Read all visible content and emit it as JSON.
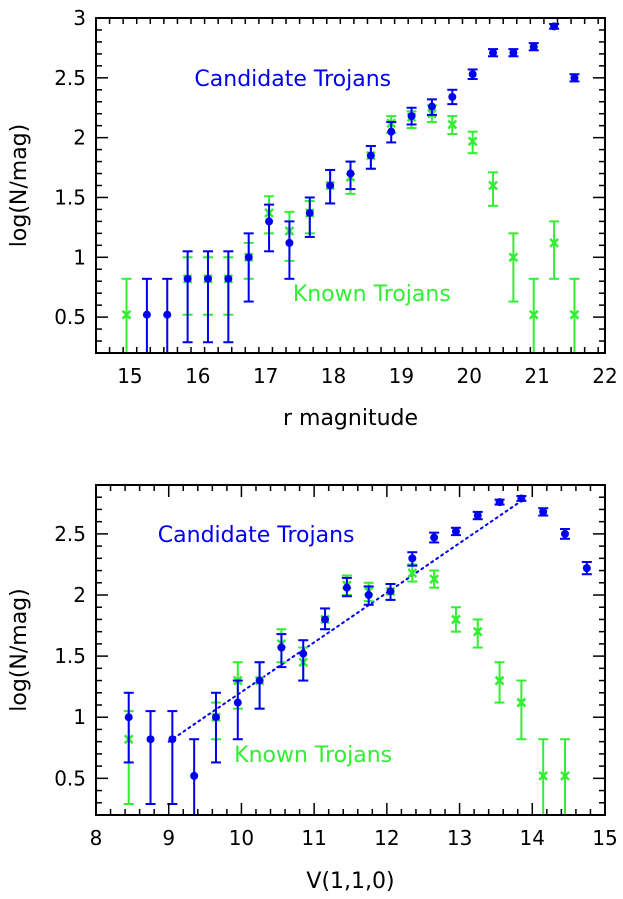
{
  "colors": {
    "candidate": "#0000ee",
    "known": "#33ee33",
    "axis": "#000000"
  },
  "chart_data": [
    {
      "type": "scatter",
      "title": "",
      "xlabel": "r magnitude",
      "ylabel": "log(N/mag)",
      "xlim": [
        14.5,
        22
      ],
      "ylim": [
        0.2,
        3
      ],
      "xticks": [
        15,
        16,
        17,
        18,
        19,
        20,
        21,
        22
      ],
      "yticks": [
        0.5,
        1,
        1.5,
        2,
        2.5,
        3
      ],
      "xtick_labels": [
        "15",
        "16",
        "17",
        "18",
        "19",
        "20",
        "21",
        "22"
      ],
      "ytick_labels": [
        "0.5",
        "1",
        "1.5",
        "2",
        "2.5",
        "3"
      ],
      "annotations": [
        {
          "text": "Candidate Trojans",
          "series": "candidate",
          "x": 15.95,
          "y": 2.5
        },
        {
          "text": "Known Trojans",
          "series": "known",
          "x": 17.4,
          "y": 0.7
        }
      ],
      "series": [
        {
          "id": "candidate",
          "marker": "circle",
          "points": [
            {
              "x": 15.25,
              "y": 0.52,
              "lo": 0.2,
              "hi": 0.82
            },
            {
              "x": 15.55,
              "y": 0.52,
              "lo": 0.2,
              "hi": 0.82
            },
            {
              "x": 15.85,
              "y": 0.82,
              "lo": 0.29,
              "hi": 1.05
            },
            {
              "x": 16.15,
              "y": 0.82,
              "lo": 0.29,
              "hi": 1.05
            },
            {
              "x": 16.45,
              "y": 0.82,
              "lo": 0.29,
              "hi": 1.05
            },
            {
              "x": 16.75,
              "y": 1.0,
              "lo": 0.63,
              "hi": 1.2
            },
            {
              "x": 17.05,
              "y": 1.3,
              "lo": 1.05,
              "hi": 1.44
            },
            {
              "x": 17.35,
              "y": 1.12,
              "lo": 0.82,
              "hi": 1.3
            },
            {
              "x": 17.65,
              "y": 1.37,
              "lo": 1.17,
              "hi": 1.5
            },
            {
              "x": 17.95,
              "y": 1.6,
              "lo": 1.45,
              "hi": 1.73
            },
            {
              "x": 18.25,
              "y": 1.7,
              "lo": 1.57,
              "hi": 1.8
            },
            {
              "x": 18.55,
              "y": 1.85,
              "lo": 1.74,
              "hi": 1.93
            },
            {
              "x": 18.85,
              "y": 2.05,
              "lo": 1.96,
              "hi": 2.13
            },
            {
              "x": 19.15,
              "y": 2.18,
              "lo": 2.11,
              "hi": 2.25
            },
            {
              "x": 19.45,
              "y": 2.26,
              "lo": 2.19,
              "hi": 2.32
            },
            {
              "x": 19.75,
              "y": 2.34,
              "lo": 2.28,
              "hi": 2.4
            },
            {
              "x": 20.05,
              "y": 2.53,
              "lo": 2.49,
              "hi": 2.57
            },
            {
              "x": 20.35,
              "y": 2.71,
              "lo": 2.68,
              "hi": 2.74
            },
            {
              "x": 20.65,
              "y": 2.71,
              "lo": 2.68,
              "hi": 2.74
            },
            {
              "x": 20.95,
              "y": 2.76,
              "lo": 2.73,
              "hi": 2.79
            },
            {
              "x": 21.25,
              "y": 2.93,
              "lo": 2.91,
              "hi": 2.95
            },
            {
              "x": 21.55,
              "y": 2.5,
              "lo": 2.47,
              "hi": 2.53
            }
          ]
        },
        {
          "id": "known",
          "marker": "x",
          "points": [
            {
              "x": 14.95,
              "y": 0.52,
              "lo": 0.2,
              "hi": 0.82
            },
            {
              "x": 15.85,
              "y": 0.82,
              "lo": 0.52,
              "hi": 1.0
            },
            {
              "x": 16.15,
              "y": 0.82,
              "lo": 0.52,
              "hi": 1.0
            },
            {
              "x": 16.45,
              "y": 0.82,
              "lo": 0.52,
              "hi": 1.0
            },
            {
              "x": 16.75,
              "y": 1.0,
              "lo": 0.82,
              "hi": 1.12
            },
            {
              "x": 17.05,
              "y": 1.37,
              "lo": 1.2,
              "hi": 1.51
            },
            {
              "x": 17.35,
              "y": 1.22,
              "lo": 0.97,
              "hi": 1.38
            },
            {
              "x": 17.65,
              "y": 1.37,
              "lo": 1.2,
              "hi": 1.47
            },
            {
              "x": 17.95,
              "y": 1.6,
              "lo": 1.45,
              "hi": 1.73
            },
            {
              "x": 18.25,
              "y": 1.67,
              "lo": 1.53,
              "hi": 1.8
            },
            {
              "x": 18.55,
              "y": 1.85,
              "lo": 1.74,
              "hi": 1.93
            },
            {
              "x": 18.85,
              "y": 2.12,
              "lo": 2.04,
              "hi": 2.18
            },
            {
              "x": 19.15,
              "y": 2.17,
              "lo": 2.08,
              "hi": 2.22
            },
            {
              "x": 19.45,
              "y": 2.2,
              "lo": 2.13,
              "hi": 2.27
            },
            {
              "x": 19.75,
              "y": 2.11,
              "lo": 2.03,
              "hi": 2.18
            },
            {
              "x": 20.05,
              "y": 1.97,
              "lo": 1.87,
              "hi": 2.05
            },
            {
              "x": 20.35,
              "y": 1.6,
              "lo": 1.43,
              "hi": 1.71
            },
            {
              "x": 20.65,
              "y": 1.0,
              "lo": 0.63,
              "hi": 1.2
            },
            {
              "x": 20.95,
              "y": 0.52,
              "lo": 0.2,
              "hi": 0.82
            },
            {
              "x": 21.25,
              "y": 1.12,
              "lo": 0.82,
              "hi": 1.3
            },
            {
              "x": 21.55,
              "y": 0.52,
              "lo": 0.2,
              "hi": 0.82
            }
          ]
        }
      ]
    },
    {
      "type": "scatter",
      "title": "",
      "xlabel": "V(1,1,0)",
      "ylabel": "log(N/mag)",
      "xlim": [
        8,
        15
      ],
      "ylim": [
        0.2,
        2.9
      ],
      "xticks": [
        8,
        9,
        10,
        11,
        12,
        13,
        14,
        15
      ],
      "yticks": [
        0.5,
        1,
        1.5,
        2,
        2.5
      ],
      "xtick_labels": [
        "8",
        "9",
        "10",
        "11",
        "12",
        "13",
        "14",
        "15"
      ],
      "ytick_labels": [
        "0.5",
        "1",
        "1.5",
        "2",
        "2.5"
      ],
      "annotations": [
        {
          "text": "Candidate Trojans",
          "series": "candidate",
          "x": 8.85,
          "y": 2.5
        },
        {
          "text": "Known Trojans",
          "series": "known",
          "x": 9.9,
          "y": 0.7
        }
      ],
      "fit_line": {
        "style": "dotted",
        "series": "candidate",
        "x": [
          9.0,
          13.9
        ],
        "y": [
          0.8,
          2.79
        ]
      },
      "series": [
        {
          "id": "candidate",
          "marker": "circle",
          "points": [
            {
              "x": 8.45,
              "y": 1.0,
              "lo": 0.63,
              "hi": 1.2
            },
            {
              "x": 8.75,
              "y": 0.82,
              "lo": 0.29,
              "hi": 1.05
            },
            {
              "x": 9.05,
              "y": 0.82,
              "lo": 0.29,
              "hi": 1.05
            },
            {
              "x": 9.35,
              "y": 0.52,
              "lo": 0.2,
              "hi": 0.82
            },
            {
              "x": 9.65,
              "y": 1.0,
              "lo": 0.63,
              "hi": 1.2
            },
            {
              "x": 9.95,
              "y": 1.12,
              "lo": 0.82,
              "hi": 1.3
            },
            {
              "x": 10.25,
              "y": 1.3,
              "lo": 1.07,
              "hi": 1.45
            },
            {
              "x": 10.55,
              "y": 1.57,
              "lo": 1.41,
              "hi": 1.68
            },
            {
              "x": 10.85,
              "y": 1.52,
              "lo": 1.3,
              "hi": 1.63
            },
            {
              "x": 11.15,
              "y": 1.8,
              "lo": 1.72,
              "hi": 1.89
            },
            {
              "x": 11.45,
              "y": 2.06,
              "lo": 1.99,
              "hi": 2.14
            },
            {
              "x": 11.75,
              "y": 2.0,
              "lo": 1.92,
              "hi": 2.07
            },
            {
              "x": 12.05,
              "y": 2.03,
              "lo": 1.96,
              "hi": 2.09
            },
            {
              "x": 12.35,
              "y": 2.3,
              "lo": 2.24,
              "hi": 2.35
            },
            {
              "x": 12.65,
              "y": 2.47,
              "lo": 2.43,
              "hi": 2.51
            },
            {
              "x": 12.95,
              "y": 2.52,
              "lo": 2.49,
              "hi": 2.55
            },
            {
              "x": 13.25,
              "y": 2.65,
              "lo": 2.62,
              "hi": 2.68
            },
            {
              "x": 13.55,
              "y": 2.76,
              "lo": 2.74,
              "hi": 2.78
            },
            {
              "x": 13.85,
              "y": 2.79,
              "lo": 2.77,
              "hi": 2.81
            },
            {
              "x": 14.15,
              "y": 2.68,
              "lo": 2.65,
              "hi": 2.71
            },
            {
              "x": 14.45,
              "y": 2.5,
              "lo": 2.46,
              "hi": 2.54
            },
            {
              "x": 14.75,
              "y": 2.22,
              "lo": 2.17,
              "hi": 2.27
            }
          ]
        },
        {
          "id": "known",
          "marker": "x",
          "points": [
            {
              "x": 8.45,
              "y": 0.82,
              "lo": 0.29,
              "hi": 1.05
            },
            {
              "x": 9.65,
              "y": 1.0,
              "lo": 0.82,
              "hi": 1.12
            },
            {
              "x": 9.95,
              "y": 1.3,
              "lo": 1.07,
              "hi": 1.45
            },
            {
              "x": 10.25,
              "y": 1.3,
              "lo": 1.07,
              "hi": 1.45
            },
            {
              "x": 10.55,
              "y": 1.6,
              "lo": 1.45,
              "hi": 1.72
            },
            {
              "x": 10.85,
              "y": 1.45,
              "lo": 1.3,
              "hi": 1.57
            },
            {
              "x": 11.15,
              "y": 1.8,
              "lo": 1.72,
              "hi": 1.89
            },
            {
              "x": 11.45,
              "y": 2.08,
              "lo": 2.0,
              "hi": 2.16
            },
            {
              "x": 11.75,
              "y": 2.03,
              "lo": 1.95,
              "hi": 2.1
            },
            {
              "x": 12.05,
              "y": 2.03,
              "lo": 1.96,
              "hi": 2.09
            },
            {
              "x": 12.35,
              "y": 2.18,
              "lo": 2.11,
              "hi": 2.25
            },
            {
              "x": 12.65,
              "y": 2.13,
              "lo": 2.06,
              "hi": 2.2
            },
            {
              "x": 12.95,
              "y": 1.8,
              "lo": 1.7,
              "hi": 1.9
            },
            {
              "x": 13.25,
              "y": 1.7,
              "lo": 1.57,
              "hi": 1.8
            },
            {
              "x": 13.55,
              "y": 1.3,
              "lo": 1.12,
              "hi": 1.45
            },
            {
              "x": 13.85,
              "y": 1.12,
              "lo": 0.82,
              "hi": 1.3
            },
            {
              "x": 14.15,
              "y": 0.52,
              "lo": 0.2,
              "hi": 0.82
            },
            {
              "x": 14.45,
              "y": 0.52,
              "lo": 0.2,
              "hi": 0.82
            }
          ]
        }
      ]
    }
  ]
}
